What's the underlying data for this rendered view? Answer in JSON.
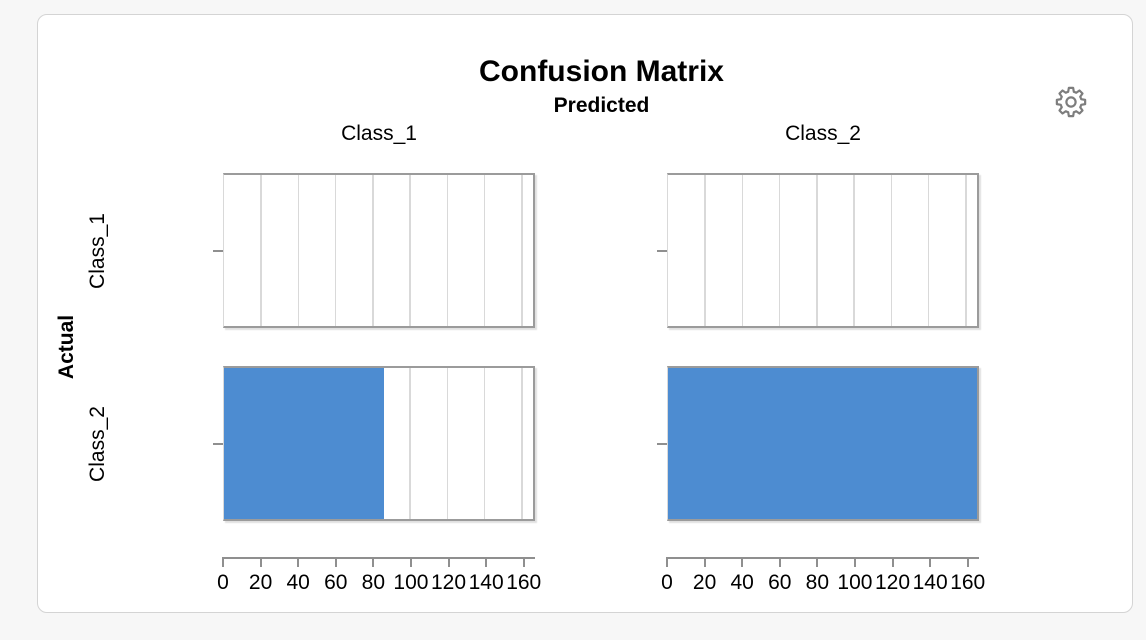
{
  "header": {
    "title": "Confusion Matrix",
    "settings_icon": "gear-icon"
  },
  "colors": {
    "page_bg": "#f7f7f7",
    "card_bg": "#ffffff",
    "card_border": "#d4d4d4",
    "bar": "#4d8cd1",
    "panel_border": "#9b9b9b",
    "gridline": "#d9d9d9",
    "axis": "#8f8f8f",
    "icon": "#7d7d7d",
    "text": "#000000"
  },
  "chart_data": {
    "type": "bar",
    "orientation": "horizontal",
    "title": "Confusion Matrix",
    "col_axis_title": "Predicted",
    "row_axis_title": "Actual",
    "col_categories": [
      "Class_1",
      "Class_2"
    ],
    "row_categories": [
      "Class_1",
      "Class_2"
    ],
    "series": [
      {
        "name": "Class_1",
        "values": [
          0,
          0
        ]
      },
      {
        "name": "Class_2",
        "values": [
          86,
          166
        ]
      }
    ],
    "xlim": [
      0,
      166
    ],
    "x_ticks": [
      0,
      20,
      40,
      60,
      80,
      100,
      120,
      140,
      160
    ],
    "grid": true,
    "legend": "none"
  }
}
